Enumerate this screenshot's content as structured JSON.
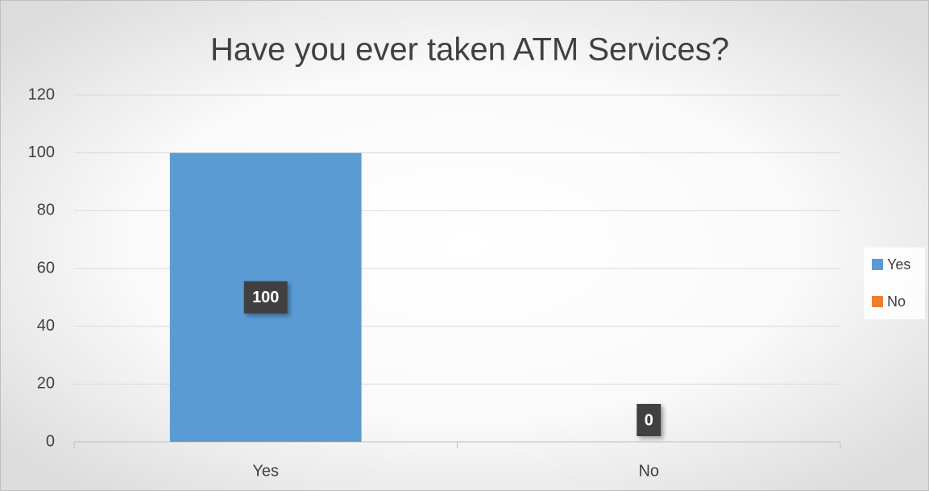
{
  "chart_data": {
    "type": "bar",
    "title": "Have you ever taken ATM Services?",
    "categories": [
      "Yes",
      "No"
    ],
    "values": [
      100,
      0
    ],
    "colors": [
      "#5b9bd5",
      "#ed7d31"
    ],
    "ylim": [
      0,
      120
    ],
    "yticks": [
      0,
      20,
      40,
      60,
      80,
      100,
      120
    ],
    "grid": true,
    "legend": "right"
  }
}
